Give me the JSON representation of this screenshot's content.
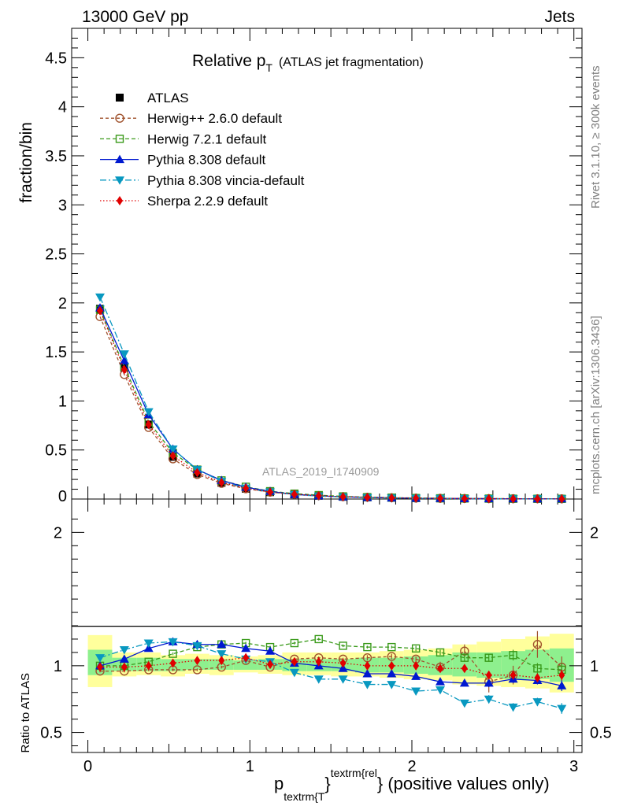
{
  "header": {
    "left": "13000 GeV pp",
    "right": "Jets"
  },
  "title_main": "Relative p",
  "title_sub": "T",
  "title_paren": "(ATLAS jet fragmentation)",
  "side_top": "Rivet 3.1.10, ≥ 300k events",
  "side_bottom": "mcplots.cern.ch [arXiv:1306.3436]",
  "watermark": "ATLAS_2019_I1740909",
  "ylabel_top": "fraction/bin",
  "ylabel_bottom": "Ratio to ATLAS",
  "xlabel": {
    "p": "p",
    "sub": "textrm{T",
    "sup": "textrm{rel",
    "brace": "}",
    "tail": "} (positive values only)"
  },
  "colors": {
    "atlas": "#000000",
    "herwigpp": "#a0522d",
    "herwig7": "#3a9a1a",
    "pythia": "#0019d0",
    "vincia": "#0898c0",
    "sherpa": "#e00000",
    "band_outer": "#ffff9c",
    "band_inner": "#8ef08e"
  },
  "chart_data": [
    {
      "type": "line",
      "title": "Relative pT (ATLAS jet fragmentation)",
      "xlabel": "ptextrm{T}^textrm{rel} (positive values only)",
      "ylabel": "fraction/bin",
      "xlim": [
        -0.1,
        3.05
      ],
      "ylim": [
        0,
        4.8
      ],
      "x_ticks": [
        0,
        1,
        2,
        3
      ],
      "y_ticks": [
        0.5,
        1,
        1.5,
        2,
        2.5,
        3,
        3.5,
        4,
        4.5
      ],
      "y_tick_labels": [
        "0.5",
        "1",
        "1.5",
        "2",
        "2.5",
        "3",
        "3.5",
        "4",
        "4.5"
      ],
      "x": [
        0.075,
        0.225,
        0.375,
        0.525,
        0.675,
        0.825,
        0.975,
        1.125,
        1.275,
        1.425,
        1.575,
        1.725,
        1.875,
        2.025,
        2.175,
        2.325,
        2.475,
        2.625,
        2.775,
        2.925
      ],
      "series": [
        {
          "name": "ATLAS",
          "key": "atlas",
          "marker": "square",
          "values": [
            1.94,
            1.34,
            0.76,
            0.43,
            0.26,
            0.165,
            0.105,
            0.07,
            0.047,
            0.033,
            0.023,
            0.017,
            0.012,
            0.009,
            0.007,
            0.005,
            0.004,
            0.003,
            0.0025,
            0.002
          ]
        },
        {
          "name": "Herwig++ 2.6.0 default",
          "key": "herwigpp",
          "marker": "circle-open",
          "dash": "4,3",
          "values": [
            1.86,
            1.27,
            0.73,
            0.41,
            0.25,
            0.16,
            0.105,
            0.07,
            0.049,
            0.035,
            0.024,
            0.018,
            0.013,
            0.0095,
            0.007,
            0.0055,
            0.004,
            0.003,
            0.0028,
            0.002
          ]
        },
        {
          "name": "Herwig 7.2.1 default",
          "key": "herwig7",
          "marker": "square-open",
          "dash": "5,3",
          "values": [
            1.93,
            1.35,
            0.79,
            0.47,
            0.3,
            0.19,
            0.125,
            0.08,
            0.055,
            0.04,
            0.027,
            0.019,
            0.014,
            0.0105,
            0.0077,
            0.0055,
            0.0042,
            0.0032,
            0.0025,
            0.002
          ]
        },
        {
          "name": "Pythia 8.308 default",
          "key": "pythia",
          "marker": "triangle-up",
          "dash": "",
          "values": [
            1.95,
            1.41,
            0.86,
            0.51,
            0.3,
            0.19,
            0.12,
            0.078,
            0.047,
            0.033,
            0.022,
            0.016,
            0.0115,
            0.0083,
            0.0062,
            0.0044,
            0.0035,
            0.0027,
            0.0021,
            0.0017
          ]
        },
        {
          "name": "Pythia 8.308 vincia-default",
          "key": "vincia",
          "marker": "triangle-down",
          "dash": "8,3,2,3",
          "values": [
            2.06,
            1.48,
            0.89,
            0.51,
            0.3,
            0.18,
            0.11,
            0.072,
            0.045,
            0.03,
            0.021,
            0.0145,
            0.0105,
            0.0075,
            0.0058,
            0.0037,
            0.003,
            0.0021,
            0.0018,
            0.0014
          ]
        },
        {
          "name": "Sherpa 2.2.9 default",
          "key": "sherpa",
          "marker": "diamond",
          "dash": "1.5,2.5",
          "values": [
            1.92,
            1.32,
            0.76,
            0.44,
            0.27,
            0.17,
            0.11,
            0.071,
            0.048,
            0.034,
            0.023,
            0.017,
            0.012,
            0.009,
            0.007,
            0.005,
            0.0038,
            0.0028,
            0.0023,
            0.0019
          ]
        }
      ]
    },
    {
      "type": "line",
      "title": "Ratio to ATLAS",
      "ylabel": "Ratio to ATLAS",
      "xlim": [
        -0.1,
        3.05
      ],
      "ylim": [
        0.35,
        2.25
      ],
      "x_ticks": [
        0,
        1,
        2,
        3
      ],
      "x_tick_labels": [
        "0",
        "1",
        "2",
        "3"
      ],
      "y_ticks": [
        0.5,
        1,
        2
      ],
      "y_tick_labels": [
        "0.5",
        "1",
        "2"
      ],
      "x": [
        0.075,
        0.225,
        0.375,
        0.525,
        0.675,
        0.825,
        0.975,
        1.125,
        1.275,
        1.425,
        1.575,
        1.725,
        1.875,
        2.025,
        2.175,
        2.325,
        2.475,
        2.625,
        2.775,
        2.925
      ],
      "bands": {
        "outer": [
          [
            0.84,
            1.23
          ],
          [
            0.92,
            1.1
          ],
          [
            0.93,
            1.1
          ],
          [
            0.92,
            1.08
          ],
          [
            0.94,
            1.09
          ],
          [
            0.93,
            1.08
          ],
          [
            0.95,
            1.07
          ],
          [
            0.94,
            1.08
          ],
          [
            0.93,
            1.1
          ],
          [
            0.93,
            1.1
          ],
          [
            0.92,
            1.1
          ],
          [
            0.92,
            1.1
          ],
          [
            0.91,
            1.11
          ],
          [
            0.9,
            1.12
          ],
          [
            0.89,
            1.13
          ],
          [
            0.86,
            1.16
          ],
          [
            0.85,
            1.18
          ],
          [
            0.84,
            1.2
          ],
          [
            0.83,
            1.22
          ],
          [
            0.8,
            1.24
          ]
        ],
        "inner": [
          [
            0.93,
            1.12
          ],
          [
            0.96,
            1.06
          ],
          [
            0.96,
            1.06
          ],
          [
            0.96,
            1.05
          ],
          [
            0.97,
            1.05
          ],
          [
            0.97,
            1.05
          ],
          [
            0.97,
            1.04
          ],
          [
            0.97,
            1.05
          ],
          [
            0.96,
            1.05
          ],
          [
            0.96,
            1.05
          ],
          [
            0.96,
            1.05
          ],
          [
            0.95,
            1.06
          ],
          [
            0.95,
            1.06
          ],
          [
            0.94,
            1.07
          ],
          [
            0.93,
            1.08
          ],
          [
            0.92,
            1.1
          ],
          [
            0.91,
            1.1
          ],
          [
            0.9,
            1.11
          ],
          [
            0.9,
            1.12
          ],
          [
            0.88,
            1.13
          ]
        ]
      },
      "series": [
        {
          "name": "Herwig++ 2.6.0 default",
          "key": "herwigpp",
          "marker": "circle-open",
          "dash": "4,3",
          "values": [
            0.96,
            0.96,
            0.97,
            0.97,
            0.97,
            0.99,
            1.04,
            0.99,
            1.05,
            1.06,
            1.05,
            1.06,
            1.07,
            1.05,
            0.99,
            1.11,
            0.88,
            0.93,
            1.16,
            0.99
          ],
          "errors": [
            0.01,
            0.01,
            0.01,
            0.01,
            0.01,
            0.01,
            0.01,
            0.01,
            0.01,
            0.01,
            0.01,
            0.02,
            0.02,
            0.02,
            0.04,
            0.05,
            0.08,
            0.07,
            0.1,
            0.08
          ]
        },
        {
          "name": "Herwig 7.2.1 default",
          "key": "herwig7",
          "marker": "square-open",
          "dash": "5,3",
          "values": [
            1.0,
            1.0,
            1.03,
            1.09,
            1.14,
            1.16,
            1.17,
            1.14,
            1.17,
            1.2,
            1.15,
            1.14,
            1.14,
            1.13,
            1.1,
            1.06,
            1.06,
            1.08,
            0.98,
            0.97
          ],
          "errors": [
            0.01,
            0.01,
            0.01,
            0.01,
            0.01,
            0.01,
            0.01,
            0.01,
            0.01,
            0.01,
            0.01,
            0.01,
            0.01,
            0.02,
            0.02,
            0.03,
            0.03,
            0.04,
            0.04,
            0.05
          ]
        },
        {
          "name": "Pythia 8.308 default",
          "key": "pythia",
          "marker": "triangle-up",
          "dash": "",
          "values": [
            1.0,
            1.05,
            1.13,
            1.18,
            1.16,
            1.16,
            1.13,
            1.11,
            1.02,
            1.0,
            0.98,
            0.94,
            0.94,
            0.92,
            0.88,
            0.87,
            0.87,
            0.9,
            0.89,
            0.85
          ],
          "errors": [
            0.01,
            0.01,
            0.01,
            0.01,
            0.01,
            0.01,
            0.01,
            0.01,
            0.01,
            0.01,
            0.01,
            0.01,
            0.01,
            0.02,
            0.02,
            0.02,
            0.03,
            0.03,
            0.03,
            0.04
          ]
        },
        {
          "name": "Pythia 8.308 vincia-default",
          "key": "vincia",
          "marker": "triangle-down",
          "dash": "8,3,2,3",
          "values": [
            1.06,
            1.12,
            1.17,
            1.18,
            1.15,
            1.09,
            1.05,
            1.03,
            0.95,
            0.9,
            0.9,
            0.86,
            0.86,
            0.81,
            0.82,
            0.72,
            0.75,
            0.69,
            0.73,
            0.68
          ],
          "errors": [
            0.01,
            0.01,
            0.01,
            0.01,
            0.01,
            0.01,
            0.01,
            0.01,
            0.01,
            0.01,
            0.01,
            0.01,
            0.02,
            0.02,
            0.02,
            0.02,
            0.03,
            0.03,
            0.03,
            0.04
          ]
        },
        {
          "name": "Sherpa 2.2.9 default",
          "key": "sherpa",
          "marker": "diamond",
          "dash": "1.5,2.5",
          "values": [
            0.99,
            0.99,
            1.0,
            1.02,
            1.04,
            1.04,
            1.06,
            1.01,
            1.03,
            1.03,
            1.02,
            1.0,
            1.0,
            1.0,
            0.98,
            0.98,
            0.93,
            0.93,
            0.91,
            0.93
          ],
          "errors": [
            0.01,
            0.01,
            0.01,
            0.01,
            0.01,
            0.01,
            0.01,
            0.01,
            0.01,
            0.01,
            0.01,
            0.01,
            0.01,
            0.02,
            0.02,
            0.02,
            0.03,
            0.03,
            0.03,
            0.04
          ]
        }
      ]
    }
  ]
}
